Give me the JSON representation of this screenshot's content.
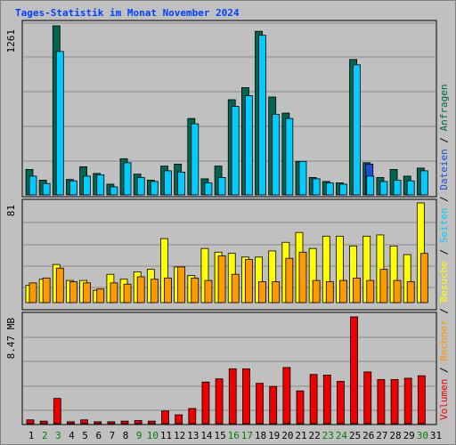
{
  "page_title": "Tages-Statistik im Monat November 2024",
  "colors": {
    "anfragen": "#006650",
    "dateien": "#1d4fd6",
    "seiten": "#00ccff",
    "besuche": "#ffff00",
    "rechner": "#ff9900",
    "volumen": "#ee0000",
    "weekend_label": "#008000",
    "weekday_label": "#000000"
  },
  "chart_data": [
    {
      "type": "bar",
      "scale_label": "1261",
      "ylim": [
        0,
        1261
      ],
      "categories": [
        "1",
        "2",
        "3",
        "4",
        "5",
        "6",
        "7",
        "8",
        "9",
        "10",
        "11",
        "12",
        "13",
        "14",
        "15",
        "16",
        "17",
        "18",
        "19",
        "20",
        "21",
        "22",
        "23",
        "24",
        "25",
        "26",
        "27",
        "28",
        "29",
        "30",
        "31"
      ],
      "weekend_days": [
        "2",
        "3",
        "9",
        "10",
        "16",
        "17",
        "23",
        "24",
        "30"
      ],
      "series": [
        {
          "name": "Anfragen",
          "values": [
            190,
            110,
            1261,
            115,
            210,
            160,
            80,
            270,
            155,
            110,
            215,
            230,
            570,
            120,
            215,
            710,
            800,
            1220,
            730,
            610,
            250,
            130,
            100,
            90,
            1010,
            240,
            130,
            190,
            140,
            200,
            null
          ]
        },
        {
          "name": "Dateien",
          "values": [
            140,
            85,
            1070,
            105,
            140,
            150,
            60,
            240,
            130,
            100,
            180,
            170,
            530,
            90,
            130,
            660,
            740,
            1190,
            600,
            570,
            250,
            120,
            90,
            80,
            970,
            230,
            100,
            110,
            105,
            180,
            null
          ]
        },
        {
          "name": "Seiten",
          "values": [
            140,
            85,
            1070,
            105,
            140,
            150,
            60,
            240,
            130,
            100,
            180,
            170,
            530,
            90,
            130,
            660,
            740,
            1190,
            600,
            570,
            250,
            120,
            90,
            80,
            970,
            140,
            100,
            110,
            105,
            180,
            null
          ]
        }
      ]
    },
    {
      "type": "bar",
      "scale_label": "81",
      "ylim": [
        0,
        81
      ],
      "categories": [
        "1",
        "2",
        "3",
        "4",
        "5",
        "6",
        "7",
        "8",
        "9",
        "10",
        "11",
        "12",
        "13",
        "14",
        "15",
        "16",
        "17",
        "18",
        "19",
        "20",
        "21",
        "22",
        "23",
        "24",
        "25",
        "26",
        "27",
        "28",
        "29",
        "30",
        "31"
      ],
      "series": [
        {
          "name": "Besuche",
          "values": [
            14,
            19,
            31,
            18,
            18,
            10,
            23,
            19,
            25,
            27,
            52,
            29,
            22,
            44,
            41,
            40,
            37,
            37,
            42,
            49,
            57,
            44,
            54,
            54,
            46,
            54,
            55,
            46,
            39,
            81,
            null
          ]
        },
        {
          "name": "Rechner",
          "values": [
            16,
            20,
            28,
            17,
            16,
            11,
            16,
            15,
            21,
            19,
            20,
            29,
            20,
            18,
            38,
            23,
            35,
            17,
            17,
            36,
            41,
            18,
            17,
            18,
            20,
            18,
            27,
            18,
            17,
            40,
            null
          ]
        }
      ]
    },
    {
      "type": "bar",
      "scale_label": "8.47 MB",
      "ylim": [
        0,
        8.47
      ],
      "categories": [
        "1",
        "2",
        "3",
        "4",
        "5",
        "6",
        "7",
        "8",
        "9",
        "10",
        "11",
        "12",
        "13",
        "14",
        "15",
        "16",
        "17",
        "18",
        "19",
        "20",
        "21",
        "22",
        "23",
        "24",
        "25",
        "26",
        "27",
        "28",
        "29",
        "30",
        "31"
      ],
      "series": [
        {
          "name": "Volumen",
          "values": [
            0.3,
            0.2,
            2.0,
            0.15,
            0.3,
            0.15,
            0.15,
            0.2,
            0.25,
            0.2,
            1.0,
            0.7,
            1.2,
            3.3,
            3.55,
            4.35,
            4.35,
            3.2,
            2.95,
            4.45,
            2.6,
            3.9,
            3.85,
            3.35,
            8.47,
            4.1,
            3.5,
            3.5,
            3.6,
            3.8,
            null
          ]
        }
      ]
    }
  ],
  "legend": [
    {
      "label": "Anfragen",
      "color": "#006650"
    },
    {
      "label": "Dateien",
      "color": "#1d4fd6"
    },
    {
      "label": "Seiten",
      "color": "#00ccff"
    },
    {
      "label": "Besuche",
      "color": "#ffff00"
    },
    {
      "label": "Rechner",
      "color": "#ff9900"
    },
    {
      "label": "Volumen",
      "color": "#ee0000"
    }
  ]
}
